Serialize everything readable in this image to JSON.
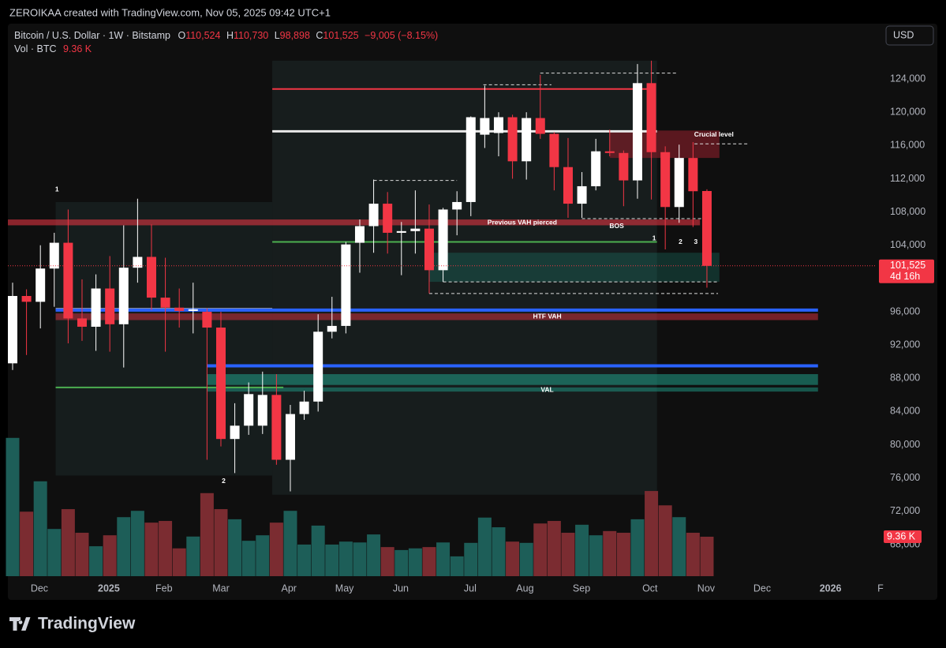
{
  "header": {
    "credit": "ZEROIKAA created with TradingView.com, Nov 05, 2025 09:42 UTC+1",
    "symbol": "Bitcoin / U.S. Dollar · 1W · Bitstamp",
    "o_key": "O",
    "open": "110,524",
    "h_key": "H",
    "high": "110,730",
    "l_key": "L",
    "low": "98,898",
    "c_key": "C",
    "close": "101,525",
    "change": "−9,005 (−8.15%)",
    "vol_key": "Vol · BTC",
    "vol": "9.36 K",
    "currency": "USD",
    "logo": "TradingView"
  },
  "chart_data": {
    "type": "candlestick",
    "up_color": "#ffffff",
    "down_color": "#f23645",
    "vol_up_color": "#1d5e58",
    "vol_down_color": "#7b2c31",
    "xlim": [
      -0.34,
      63.07
    ],
    "ylim": [
      64200,
      130650
    ],
    "volume_ylim": [
      0,
      37440
    ],
    "xticks": [
      {
        "value": 1.93,
        "label": "Dec"
      },
      {
        "value": 6.93,
        "label": "2025"
      },
      {
        "value": 10.9,
        "label": "Feb"
      },
      {
        "value": 15,
        "label": "Mar"
      },
      {
        "value": 19.9,
        "label": "Apr"
      },
      {
        "value": 23.9,
        "label": "May"
      },
      {
        "value": 27.95,
        "label": "Jun"
      },
      {
        "value": 32.95,
        "label": "Jul"
      },
      {
        "value": 36.9,
        "label": "Aug"
      },
      {
        "value": 40.97,
        "label": "Sep"
      },
      {
        "value": 45.9,
        "label": "Oct"
      },
      {
        "value": 49.94,
        "label": "Nov"
      },
      {
        "value": 53.98,
        "label": "Dec"
      },
      {
        "value": 58.9,
        "label": "2026"
      },
      {
        "value": 62.5,
        "label": "F"
      }
    ],
    "yticks": [
      {
        "value": 68000,
        "label": "68,000"
      },
      {
        "value": 72000,
        "label": "72,000"
      },
      {
        "value": 76000,
        "label": "76,000"
      },
      {
        "value": 80000,
        "label": "80,000"
      },
      {
        "value": 84000,
        "label": "84,000"
      },
      {
        "value": 88000,
        "label": "88,000"
      },
      {
        "value": 92000,
        "label": "92,000"
      },
      {
        "value": 96000,
        "label": "96,000"
      },
      {
        "value": 104000,
        "label": "104,000"
      },
      {
        "value": 108000,
        "label": "108,000"
      },
      {
        "value": 112000,
        "label": "112,000"
      },
      {
        "value": 116000,
        "label": "116,000"
      },
      {
        "value": 120000,
        "label": "120,000"
      },
      {
        "value": 124000,
        "label": "124,000"
      }
    ],
    "candles": [
      [
        89800,
        99500,
        89000,
        97900
      ],
      [
        97900,
        98700,
        90800,
        97200
      ],
      [
        97200,
        104000,
        94000,
        101200
      ],
      [
        101200,
        105500,
        96600,
        104300
      ],
      [
        104300,
        108300,
        92200,
        95200
      ],
      [
        95200,
        99900,
        92500,
        94200
      ],
      [
        94200,
        100500,
        91300,
        98800
      ],
      [
        98800,
        102700,
        91200,
        94500
      ],
      [
        94500,
        106400,
        89300,
        101300
      ],
      [
        101300,
        109600,
        99500,
        102600
      ],
      [
        102600,
        106500,
        96200,
        97700
      ],
      [
        97700,
        102500,
        91200,
        96500
      ],
      [
        96500,
        98800,
        94100,
        96100
      ],
      [
        96100,
        99500,
        93400,
        96300
      ],
      [
        96000,
        96400,
        78200,
        94100
      ],
      [
        94100,
        96000,
        79800,
        80700
      ],
      [
        80700,
        85000,
        76600,
        82300
      ],
      [
        82300,
        87500,
        81200,
        86100
      ],
      [
        82300,
        88800,
        81300,
        86000
      ],
      [
        86000,
        88500,
        77600,
        78200
      ],
      [
        78200,
        84800,
        74400,
        83700
      ],
      [
        83700,
        86500,
        83000,
        85200
      ],
      [
        85200,
        95700,
        84000,
        93600
      ],
      [
        93600,
        97800,
        92800,
        94300
      ],
      [
        94300,
        104400,
        93400,
        104100
      ],
      [
        104300,
        107100,
        100700,
        106300
      ],
      [
        106300,
        111900,
        103100,
        109000
      ],
      [
        109000,
        110400,
        103000,
        105500
      ],
      [
        105500,
        106800,
        100400,
        105700
      ],
      [
        105700,
        110600,
        103000,
        106000
      ],
      [
        106000,
        108900,
        98200,
        101000
      ],
      [
        101000,
        108500,
        99600,
        108300
      ],
      [
        108300,
        110500,
        105200,
        109200
      ],
      [
        109200,
        119500,
        107500,
        119400
      ],
      [
        117300,
        123200,
        115700,
        119300
      ],
      [
        117500,
        120000,
        114700,
        119400
      ],
      [
        119400,
        119700,
        112000,
        114100
      ],
      [
        114100,
        120000,
        111900,
        119300
      ],
      [
        119300,
        124500,
        116800,
        117400
      ],
      [
        117400,
        117600,
        110600,
        113400
      ],
      [
        113400,
        116900,
        107300,
        109000
      ],
      [
        109000,
        112800,
        107300,
        111100
      ],
      [
        111100,
        116800,
        110600,
        115300
      ],
      [
        115300,
        117900,
        114700,
        115100
      ],
      [
        115100,
        115400,
        108700,
        111800
      ],
      [
        111800,
        125800,
        109600,
        123500
      ],
      [
        123500,
        126200,
        109500,
        115200
      ],
      [
        115200,
        115900,
        103500,
        108600
      ],
      [
        108600,
        116100,
        106700,
        114500
      ],
      [
        114500,
        116400,
        106200,
        110500
      ],
      [
        110524,
        110730,
        98898,
        101525
      ]
    ],
    "volume": [
      32800,
      15300,
      22500,
      11200,
      15900,
      10300,
      7100,
      9700,
      14000,
      15500,
      12700,
      13100,
      6600,
      9400,
      19700,
      15900,
      13500,
      8400,
      9700,
      12700,
      15500,
      7500,
      12000,
      7500,
      8200,
      8000,
      9900,
      6900,
      6200,
      6600,
      6900,
      8000,
      4700,
      7900,
      13900,
      11600,
      8200,
      7900,
      12500,
      13100,
      10300,
      12200,
      9700,
      10700,
      10300,
      13500,
      20200,
      16800,
      14000,
      10300,
      9360
    ],
    "last_volume_label": "9.36 K",
    "last_price": {
      "value": 101525,
      "label": "101,525"
    },
    "countdown": "4d 16h",
    "zones": [
      {
        "x0": 18.7,
        "x1": 46.4,
        "y0": 74000,
        "y1": 126200,
        "color": "rgba(45,70,70,0.28)"
      },
      {
        "x0": 3.1,
        "x1": 18.7,
        "y0": 76300,
        "y1": 109200,
        "color": "rgba(45,70,70,0.25)"
      },
      {
        "x0": -0.34,
        "x1": 49.5,
        "y0": 106400,
        "y1": 107100,
        "color": "rgba(242,54,69,0.55)"
      },
      {
        "x0": 43,
        "x1": 50.9,
        "y0": 114500,
        "y1": 117800,
        "color": "rgba(140,30,42,0.6)"
      },
      {
        "x0": 30,
        "x1": 50.9,
        "y0": 99600,
        "y1": 103100,
        "color": "rgba(34,171,148,0.22)"
      },
      {
        "x0": 3.1,
        "x1": 58,
        "y0": 95000,
        "y1": 95800,
        "color": "rgba(242,54,69,0.45)"
      },
      {
        "x0": 14,
        "x1": 58,
        "y0": 87200,
        "y1": 88500,
        "color": "rgba(34,171,148,0.5)"
      },
      {
        "x0": 14,
        "x1": 58,
        "y0": 86400,
        "y1": 86900,
        "color": "rgba(34,171,148,0.45)"
      }
    ],
    "lines": [
      {
        "x0": 18.7,
        "x1": 46.3,
        "price": 122800,
        "color": "#f23645",
        "width": 2
      },
      {
        "x0": 18.7,
        "x1": 46.4,
        "price": 117700,
        "color": "#e8e8e8",
        "width": 3
      },
      {
        "x0": 3.1,
        "x1": 18.7,
        "price": 96300,
        "color": "#e8e8e8",
        "width": 3
      },
      {
        "x0": 18.7,
        "x1": 46.4,
        "price": 104400,
        "color": "#4caf50",
        "width": 2
      },
      {
        "x0": 3.1,
        "x1": 58,
        "price": 96200,
        "color": "#2962ff",
        "width": 4
      },
      {
        "x0": 14,
        "x1": 58,
        "price": 89500,
        "color": "#2962ff",
        "width": 4
      },
      {
        "x0": 3.1,
        "x1": 19.5,
        "price": 86900,
        "color": "#4caf50",
        "width": 2
      },
      {
        "x0": 30,
        "x1": 50.8,
        "price": 98200,
        "color": "#dddddd",
        "width": 1,
        "dashed": true
      },
      {
        "x0": 31,
        "x1": 50.8,
        "price": 99600,
        "color": "#dddddd",
        "width": 1,
        "dashed": true
      },
      {
        "x0": 41,
        "x1": 49.7,
        "price": 107200,
        "color": "#dddddd",
        "width": 1,
        "dashed": true
      },
      {
        "x0": 49.1,
        "x1": 53,
        "price": 116200,
        "color": "#dddddd",
        "width": 1,
        "dashed": true
      },
      {
        "x0": 38,
        "x1": 47.8,
        "price": 124700,
        "color": "#dddddd",
        "width": 1,
        "dashed": true
      },
      {
        "x0": 33.9,
        "x1": 38.8,
        "price": 123300,
        "color": "#dddddd",
        "width": 1,
        "dashed": true
      },
      {
        "x0": 26,
        "x1": 32,
        "price": 111800,
        "color": "#dddddd",
        "width": 1,
        "dashed": true
      }
    ],
    "annotations": [
      {
        "text": "Previous VAH pierced",
        "x": 36.7,
        "price": 106700
      },
      {
        "text": "BOS",
        "x": 43.5,
        "price": 106300
      },
      {
        "text": "Crucial level",
        "x": 50.5,
        "price": 117300
      },
      {
        "text": "HTF VAH",
        "x": 38.5,
        "price": 95400
      },
      {
        "text": "VAL",
        "x": 38.5,
        "price": 86600
      },
      {
        "text": "1",
        "x": 3.2,
        "price": 110700
      },
      {
        "text": "2",
        "x": 15.2,
        "price": 75600
      },
      {
        "text": "1",
        "x": 46.2,
        "price": 104800
      },
      {
        "text": "2",
        "x": 48.1,
        "price": 104400
      },
      {
        "text": "3",
        "x": 49.2,
        "price": 104400
      }
    ]
  }
}
